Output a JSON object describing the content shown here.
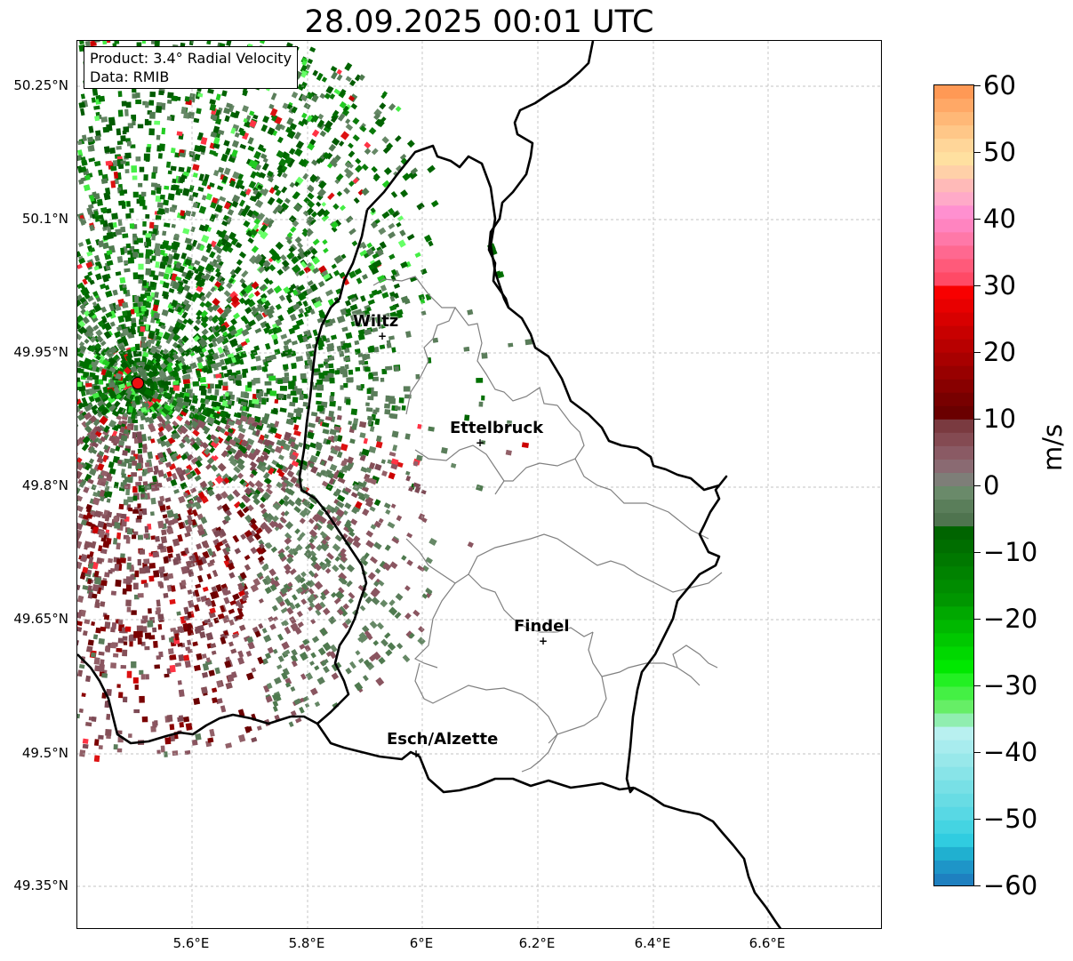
{
  "title": "28.09.2025 00:01 UTC",
  "info_box": {
    "product": "Product: 3.4° Radial Velocity",
    "data": "Data: RMIB"
  },
  "map": {
    "lat_labels": [
      "50.25°N",
      "50.1°N",
      "49.95°N",
      "49.8°N",
      "49.65°N",
      "49.5°N",
      "49.35°N"
    ],
    "lon_labels": [
      "5.6°E",
      "5.8°E",
      "6°E",
      "6.2°E",
      "6.4°E",
      "6.6°E"
    ],
    "grid": true,
    "cities": [
      {
        "name": "Wiltz",
        "lon": 5.93,
        "lat": 49.966
      },
      {
        "name": "Ettelbruck",
        "lon": 6.1,
        "lat": 49.847
      },
      {
        "name": "Findel",
        "lon": 6.21,
        "lat": 49.627
      },
      {
        "name": "Esch/Alzette",
        "lon": 5.99,
        "lat": 49.498
      }
    ],
    "radar_site": {
      "lon": 5.505,
      "lat": 49.914,
      "color": "#ee1111"
    }
  },
  "colorbar": {
    "unit": "m/s",
    "min": -60,
    "max": 60,
    "ticks": [
      "60",
      "50",
      "40",
      "30",
      "20",
      "10",
      "0",
      "−10",
      "−20",
      "−30",
      "−40",
      "−50",
      "−60"
    ]
  },
  "colors": {
    "border_country": "#000000",
    "border_canton": "#808080",
    "outbound_dark": "#7a0000",
    "outbound_muted": "#8a5560",
    "inbound_dark": "#006400",
    "inbound_muted": "#5a7d5a"
  }
}
